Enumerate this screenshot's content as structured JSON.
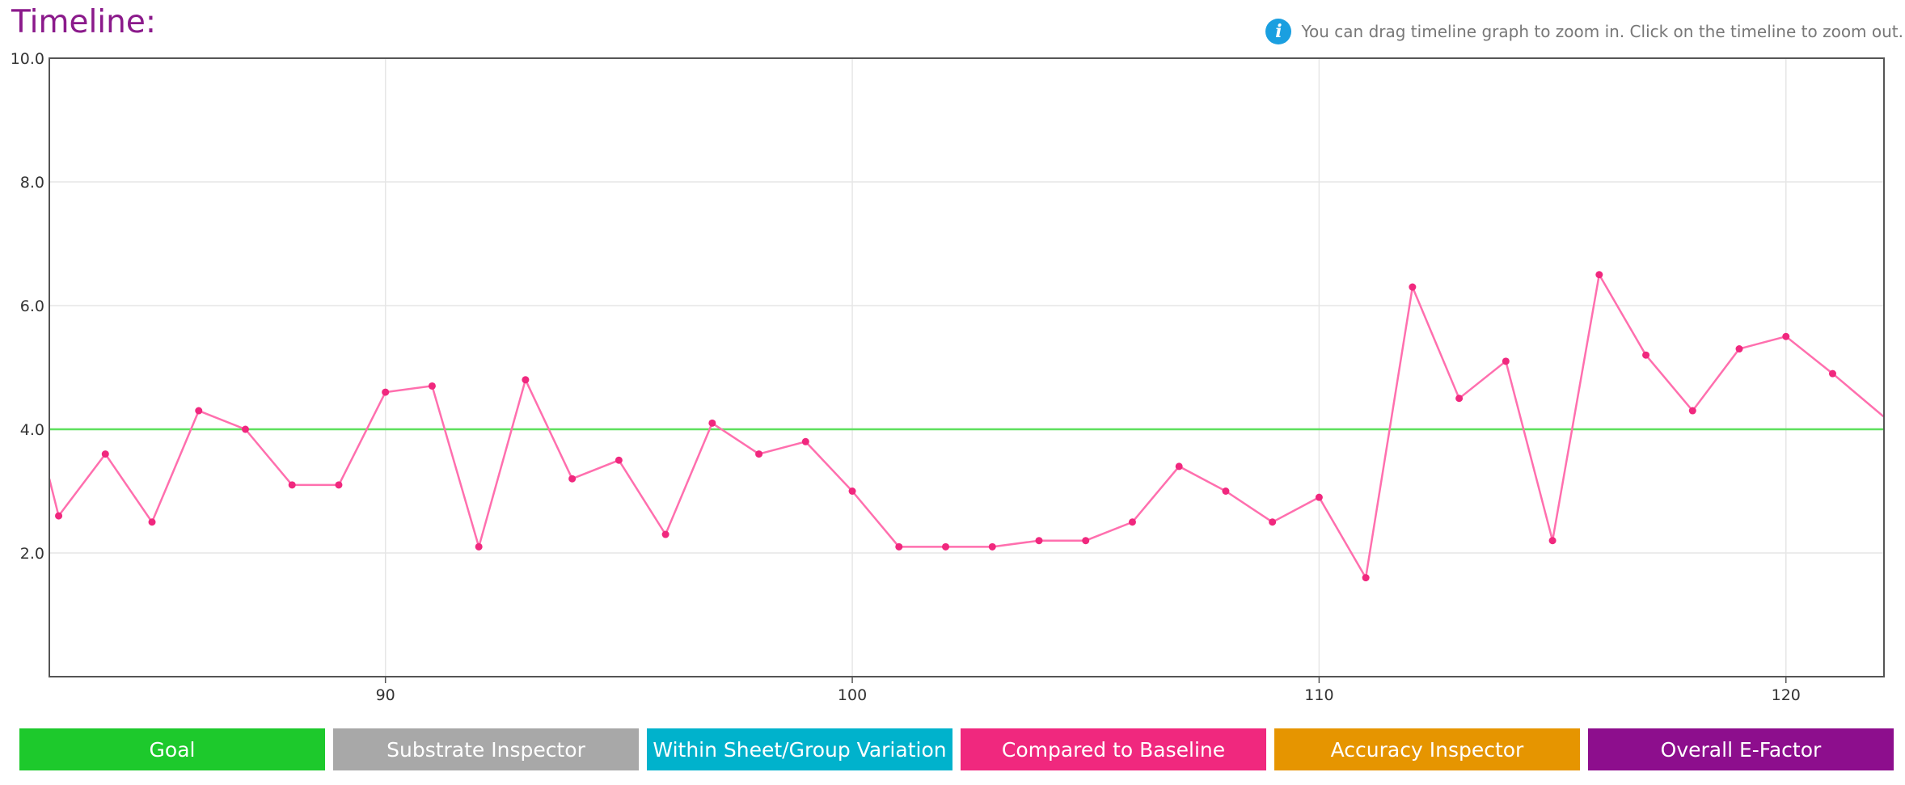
{
  "header": {
    "title": "Timeline:",
    "hint_text": "You can drag timeline graph to zoom in. Click on the timeline to zoom out.",
    "hint_icon": "info-icon"
  },
  "legend": [
    {
      "label": "Goal",
      "color": "#1dc92c"
    },
    {
      "label": "Substrate Inspector",
      "color": "#a8a8a8"
    },
    {
      "label": "Within Sheet/Group Variation",
      "color": "#00b2cc"
    },
    {
      "label": "Compared to Baseline",
      "color": "#f0287e"
    },
    {
      "label": "Accuracy Inspector",
      "color": "#e69500"
    },
    {
      "label": "Overall E-Factor",
      "color": "#8d0e8d"
    }
  ],
  "chart_data": {
    "type": "line",
    "xlim": [
      82.8,
      122.1
    ],
    "ylim": [
      0,
      10
    ],
    "x_ticks": [
      90,
      100,
      110,
      120
    ],
    "y_ticks": [
      2.0,
      4.0,
      6.0,
      8.0,
      10.0
    ],
    "grid": true,
    "goal": {
      "value": 4.0,
      "color": "#5ee05e"
    },
    "series": [
      {
        "color": "#ff6fae",
        "x": [
          82.8,
          83,
          84,
          85,
          86,
          87,
          88,
          89,
          90,
          91,
          92,
          93,
          94,
          95,
          96,
          97,
          98,
          99,
          100,
          101,
          102,
          103,
          104,
          105,
          106,
          107,
          108,
          109,
          110,
          111,
          112,
          113,
          114,
          115,
          116,
          117,
          118,
          119,
          120,
          121,
          122.1
        ],
        "values": [
          3.2,
          2.6,
          3.6,
          2.5,
          4.3,
          4.0,
          3.1,
          3.1,
          4.6,
          4.7,
          2.1,
          4.8,
          3.2,
          3.5,
          2.3,
          4.1,
          3.6,
          3.8,
          3.0,
          2.1,
          2.1,
          2.1,
          2.2,
          2.2,
          2.5,
          3.4,
          3.0,
          2.5,
          2.9,
          1.6,
          6.3,
          4.5,
          5.1,
          2.2,
          6.5,
          5.2,
          4.3,
          5.3,
          5.5,
          4.9,
          4.2
        ]
      }
    ]
  }
}
